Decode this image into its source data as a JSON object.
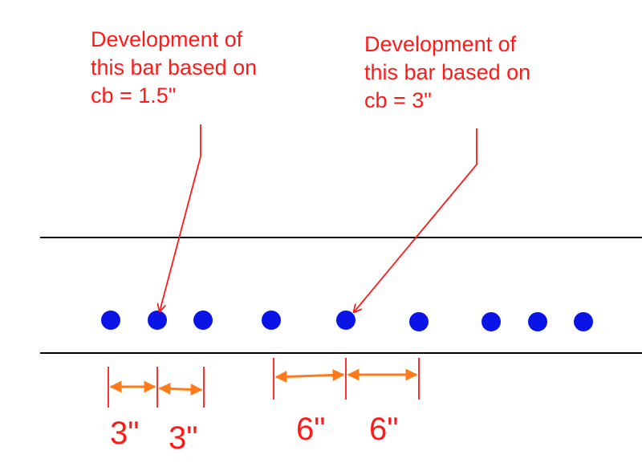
{
  "annotations": {
    "left": "Development of\nthis bar based on\ncb = 1.5\"",
    "right": "Development of\nthis bar based on\ncb = 3\""
  },
  "dimensions": {
    "d1": "3\"",
    "d2": "3\"",
    "d3": "6\"",
    "d4": "6\""
  },
  "colors": {
    "bar": "#0a14e6",
    "annotation": "#ff1a1a",
    "dimension_arrow": "#ff7a1a",
    "beam_edge": "#000000"
  }
}
